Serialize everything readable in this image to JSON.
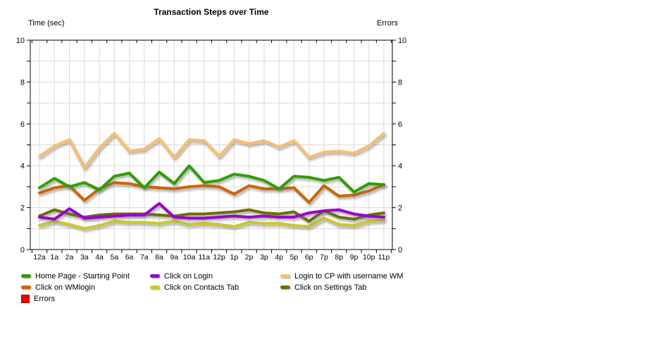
{
  "chart_data": {
    "type": "line",
    "title": "Transaction Steps over Time",
    "ylabel_left": "Time (sec)",
    "ylabel_right": "Errors",
    "xlabel": "",
    "ylim": [
      0,
      10
    ],
    "ytick_label_step": 2,
    "ytick_minor_step": 1,
    "grid": true,
    "legend_position": "bottom-left",
    "axis_color": "#000000",
    "grid_color": "#d9d9d9",
    "categories": [
      "12a",
      "1a",
      "2a",
      "3a",
      "4a",
      "5a",
      "6a",
      "7a",
      "8a",
      "9a",
      "10a",
      "11a",
      "12p",
      "1p",
      "2p",
      "3p",
      "4p",
      "5p",
      "6p",
      "7p",
      "8p",
      "9p",
      "10p",
      "11p"
    ],
    "series": [
      {
        "name": "Home Page - Starting Point",
        "color": "#2f9e00",
        "marker": "line",
        "values": [
          2.95,
          3.4,
          3.0,
          3.2,
          2.85,
          3.5,
          3.65,
          2.95,
          3.7,
          3.15,
          4.0,
          3.2,
          3.3,
          3.6,
          3.5,
          3.3,
          2.9,
          3.5,
          3.45,
          3.3,
          3.45,
          2.75,
          3.15,
          3.1
        ]
      },
      {
        "name": "Click on Login",
        "color": "#9900cc",
        "marker": "line",
        "values": [
          1.55,
          1.45,
          1.95,
          1.5,
          1.55,
          1.6,
          1.65,
          1.65,
          2.2,
          1.55,
          1.5,
          1.5,
          1.55,
          1.6,
          1.55,
          1.6,
          1.55,
          1.55,
          1.75,
          1.85,
          1.9,
          1.7,
          1.6,
          1.55
        ]
      },
      {
        "name": "Login to CP with username WM",
        "color": "#f6be6e",
        "marker": "line",
        "values": [
          4.45,
          4.95,
          5.25,
          3.9,
          4.85,
          5.55,
          4.7,
          4.8,
          5.3,
          4.4,
          5.25,
          5.2,
          4.45,
          5.25,
          5.05,
          5.2,
          4.9,
          5.2,
          4.4,
          4.65,
          4.7,
          4.6,
          4.95,
          5.55
        ]
      },
      {
        "name": "Click on WMlogin",
        "color": "#cc6600",
        "marker": "line",
        "values": [
          2.7,
          2.95,
          3.05,
          2.35,
          2.9,
          3.2,
          3.15,
          3.0,
          2.95,
          2.9,
          3.0,
          3.05,
          3.0,
          2.65,
          3.05,
          2.9,
          2.9,
          2.95,
          2.25,
          3.05,
          2.55,
          2.6,
          2.8,
          3.1
        ]
      },
      {
        "name": "Click on Contacts Tab",
        "color": "#c9c92b",
        "marker": "line",
        "values": [
          1.15,
          1.35,
          1.2,
          1.0,
          1.15,
          1.35,
          1.3,
          1.3,
          1.25,
          1.35,
          1.2,
          1.25,
          1.2,
          1.1,
          1.3,
          1.25,
          1.25,
          1.15,
          1.1,
          1.5,
          1.2,
          1.15,
          1.35,
          1.4
        ]
      },
      {
        "name": "Click on Settings Tab",
        "color": "#6e6e00",
        "marker": "line",
        "values": [
          1.6,
          1.9,
          1.7,
          1.55,
          1.65,
          1.7,
          1.7,
          1.7,
          1.65,
          1.6,
          1.7,
          1.7,
          1.75,
          1.8,
          1.9,
          1.75,
          1.7,
          1.8,
          1.35,
          1.85,
          1.55,
          1.45,
          1.65,
          1.75
        ]
      },
      {
        "name": "Errors",
        "color": "#ee0000",
        "marker": "square",
        "values": [
          0,
          0,
          0,
          0,
          0,
          0,
          0,
          0,
          0,
          0,
          0,
          0,
          0,
          0,
          0,
          0,
          0,
          0,
          0,
          0,
          0,
          0,
          0,
          0
        ]
      }
    ],
    "draw_order": [
      2,
      4,
      5,
      3,
      0,
      1
    ],
    "left_tick_labels": [
      "0",
      "2",
      "4",
      "6",
      "8",
      "10"
    ],
    "right_tick_labels": [
      "0",
      "2",
      "4",
      "6",
      "8",
      "10"
    ]
  }
}
